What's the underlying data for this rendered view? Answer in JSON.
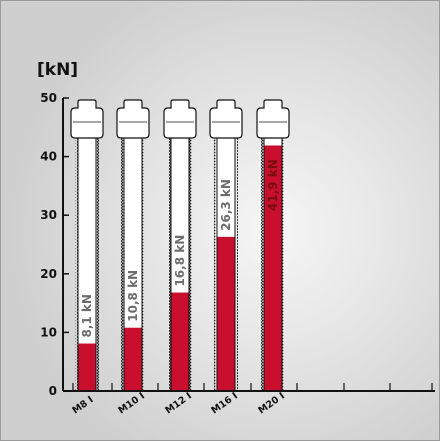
{
  "chart_data": {
    "type": "bar",
    "title": "",
    "unit_label": "[kN]",
    "xlabel": "",
    "ylabel": "[kN]",
    "ylim": [
      0,
      50
    ],
    "y_ticks": [
      "0",
      "10",
      "20",
      "30",
      "40",
      "50"
    ],
    "categories": [
      "M8 I",
      "M10 I",
      "M12 I",
      "M16 I",
      "M20 I"
    ],
    "values": [
      8.1,
      10.8,
      16.8,
      26.3,
      41.9
    ],
    "value_labels": [
      "8,1 kN",
      "10,8 kN",
      "16,8 kN",
      "26,3 kN",
      "41,9 kN"
    ],
    "grid": false,
    "bar_color": "#c8102e",
    "bolt_color": "#ffffff",
    "outline_color": "#111111",
    "label_color_on_white": "#6d6d6d",
    "label_color_on_red": "#7a0d0d"
  }
}
